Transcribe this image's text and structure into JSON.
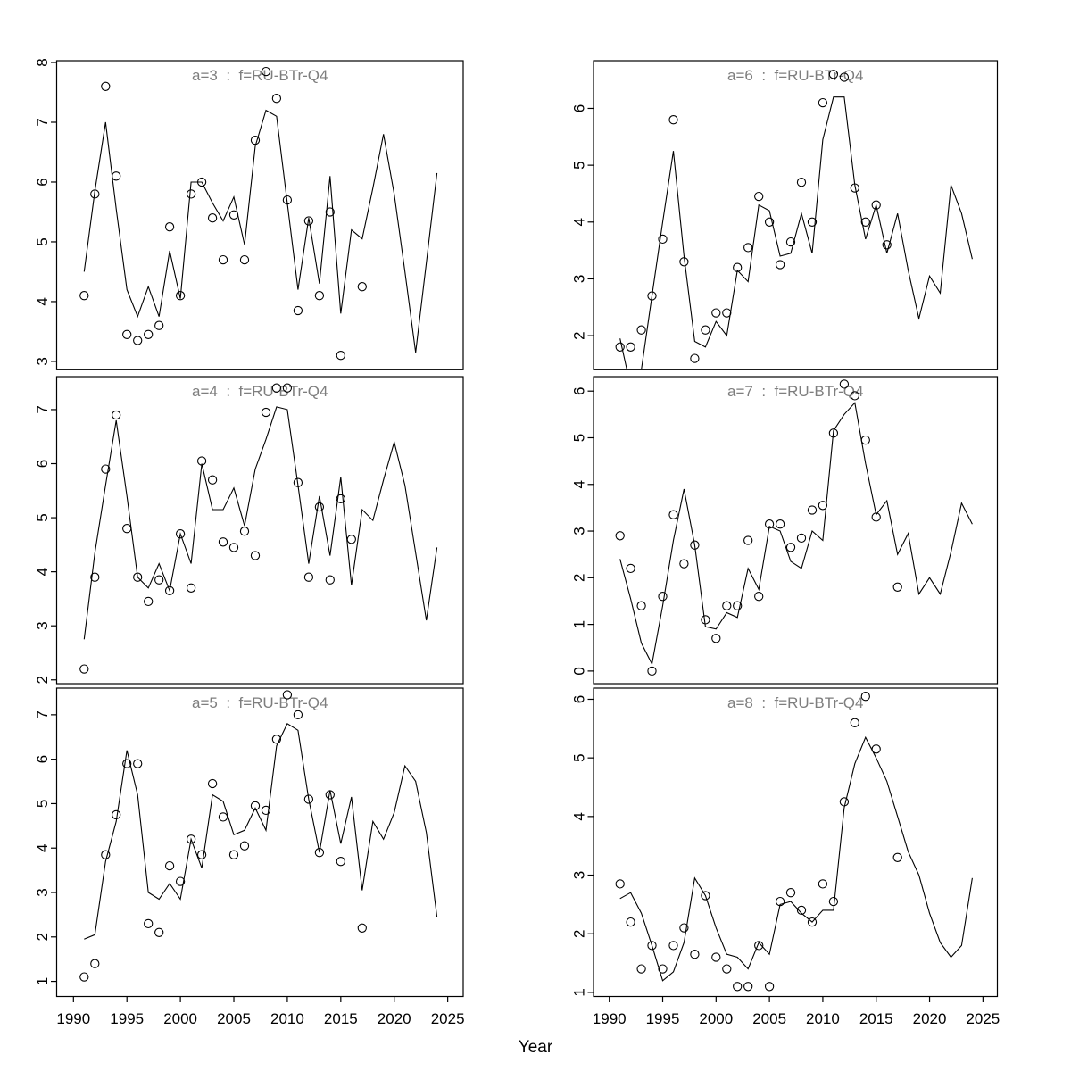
{
  "figure": {
    "background": "#ffffff",
    "xlabel": "Year",
    "x_ticks": [
      1990,
      1995,
      2000,
      2005,
      2010,
      2015,
      2020,
      2025
    ],
    "title_color": "#7e7e7e",
    "line_color": "#000000",
    "point_color": "#000000"
  },
  "chart_data": [
    {
      "type": "line",
      "title": "a=3  :  f=RU-BTr-Q4",
      "age": "a=3",
      "fleet": "f=RU-BTr-Q4",
      "grid_pos": {
        "row": 0,
        "col": 0
      },
      "xlim": [
        1988.43,
        2026.45
      ],
      "ylim": [
        2.86,
        8.03
      ],
      "yticks": [
        3,
        4,
        5,
        6,
        7,
        8
      ],
      "line": {
        "x": [
          1991,
          1992,
          1993,
          1994,
          1995,
          1996,
          1997,
          1998,
          1999,
          2000,
          2001,
          2002,
          2003,
          2004,
          2005,
          2006,
          2007,
          2008,
          2009,
          2010,
          2011,
          2012,
          2013,
          2014,
          2015,
          2016,
          2017,
          2018,
          2019,
          2020,
          2021,
          2022,
          2023,
          2024
        ],
        "y": [
          4.5,
          5.85,
          7.0,
          5.55,
          4.2,
          3.75,
          4.25,
          3.75,
          4.85,
          4.05,
          6.0,
          6.0,
          5.65,
          5.35,
          5.75,
          4.95,
          6.6,
          7.2,
          7.1,
          5.65,
          4.2,
          5.4,
          4.3,
          6.1,
          3.8,
          5.2,
          5.05,
          5.9,
          6.8,
          5.8,
          4.5,
          3.15,
          4.65,
          6.15
        ]
      },
      "points": {
        "x": [
          1991,
          1992,
          1993,
          1994,
          1995,
          1996,
          1997,
          1998,
          1999,
          2000,
          2001,
          2002,
          2003,
          2004,
          2005,
          2006,
          2007,
          2008,
          2009,
          2010,
          2011,
          2012,
          2013,
          2014,
          2015,
          2017
        ],
        "y": [
          4.1,
          5.8,
          7.6,
          6.1,
          3.45,
          3.35,
          3.45,
          3.6,
          5.25,
          4.1,
          5.8,
          6.0,
          5.4,
          4.7,
          5.45,
          4.7,
          6.7,
          7.85,
          7.4,
          5.7,
          3.85,
          5.35,
          4.1,
          5.5,
          3.1,
          4.25
        ]
      }
    },
    {
      "type": "line",
      "title": "a=6  :  f=RU-BTr-Q4",
      "age": "a=6",
      "fleet": "f=RU-BTr-Q4",
      "grid_pos": {
        "row": 0,
        "col": 1
      },
      "xlim": [
        1988.52,
        2026.35
      ],
      "ylim": [
        1.4,
        6.84
      ],
      "yticks": [
        2,
        3,
        4,
        5,
        6
      ],
      "line": {
        "x": [
          1991,
          1992,
          1993,
          1994,
          1995,
          1996,
          1997,
          1998,
          1999,
          2000,
          2001,
          2002,
          2003,
          2004,
          2005,
          2006,
          2007,
          2008,
          2009,
          2010,
          2011,
          2012,
          2013,
          2014,
          2015,
          2016,
          2017,
          2018,
          2019,
          2020,
          2021,
          2022,
          2023,
          2024
        ],
        "y": [
          1.95,
          1.1,
          1.4,
          2.7,
          4.0,
          5.25,
          3.4,
          1.9,
          1.8,
          2.25,
          2.0,
          3.15,
          2.95,
          4.3,
          4.2,
          3.4,
          3.45,
          4.15,
          3.45,
          5.45,
          6.2,
          6.2,
          4.65,
          3.7,
          4.3,
          3.45,
          4.15,
          3.15,
          2.3,
          3.05,
          2.75,
          4.65,
          4.15,
          3.35
        ]
      },
      "points": {
        "x": [
          1991,
          1992,
          1993,
          1994,
          1995,
          1996,
          1997,
          1998,
          1999,
          2000,
          2001,
          2002,
          2003,
          2004,
          2005,
          2006,
          2007,
          2008,
          2009,
          2010,
          2011,
          2012,
          2013,
          2014,
          2015,
          2016
        ],
        "y": [
          1.8,
          1.8,
          2.1,
          2.7,
          3.7,
          5.8,
          3.3,
          1.6,
          2.1,
          2.4,
          2.4,
          3.2,
          3.55,
          4.45,
          4.0,
          3.25,
          3.65,
          4.7,
          4.0,
          6.1,
          6.6,
          6.55,
          4.6,
          4.0,
          4.3,
          3.6
        ]
      }
    },
    {
      "type": "line",
      "title": "a=4  :  f=RU-BTr-Q4",
      "age": "a=4",
      "fleet": "f=RU-BTr-Q4",
      "grid_pos": {
        "row": 1,
        "col": 0
      },
      "xlim": [
        1988.43,
        2026.45
      ],
      "ylim": [
        1.93,
        7.61
      ],
      "yticks": [
        2,
        3,
        4,
        5,
        6,
        7
      ],
      "line": {
        "x": [
          1991,
          1992,
          1993,
          1994,
          1995,
          1996,
          1997,
          1998,
          1999,
          2000,
          2001,
          2002,
          2003,
          2004,
          2005,
          2006,
          2007,
          2008,
          2009,
          2010,
          2011,
          2012,
          2013,
          2014,
          2015,
          2016,
          2017,
          2018,
          2019,
          2020,
          2021,
          2022,
          2023,
          2024
        ],
        "y": [
          2.75,
          4.35,
          5.6,
          6.8,
          5.4,
          3.9,
          3.7,
          4.15,
          3.65,
          4.7,
          4.15,
          6.0,
          5.15,
          5.15,
          5.55,
          4.85,
          5.9,
          6.45,
          7.05,
          7.0,
          5.6,
          4.15,
          5.4,
          4.3,
          5.75,
          3.75,
          5.15,
          4.95,
          5.7,
          6.4,
          5.6,
          4.35,
          3.1,
          4.45
        ]
      },
      "points": {
        "x": [
          1991,
          1992,
          1993,
          1994,
          1995,
          1996,
          1997,
          1998,
          1999,
          2000,
          2001,
          2002,
          2003,
          2004,
          2005,
          2006,
          2007,
          2008,
          2009,
          2010,
          2011,
          2012,
          2013,
          2014,
          2015,
          2016
        ],
        "y": [
          2.2,
          3.9,
          5.9,
          6.9,
          4.8,
          3.9,
          3.45,
          3.85,
          3.65,
          4.7,
          3.7,
          6.05,
          5.7,
          4.55,
          4.45,
          4.75,
          4.3,
          6.95,
          7.4,
          7.4,
          5.65,
          3.9,
          5.2,
          3.85,
          5.35,
          4.6
        ]
      }
    },
    {
      "type": "line",
      "title": "a=7  :  f=RU-BTr-Q4",
      "age": "a=7",
      "fleet": "f=RU-BTr-Q4",
      "grid_pos": {
        "row": 1,
        "col": 1
      },
      "xlim": [
        1988.52,
        2026.35
      ],
      "ylim": [
        -0.27,
        6.31
      ],
      "yticks": [
        0,
        1,
        2,
        3,
        4,
        5,
        6
      ],
      "line": {
        "x": [
          1991,
          1992,
          1993,
          1994,
          1995,
          1996,
          1997,
          1998,
          1999,
          2000,
          2001,
          2002,
          2003,
          2004,
          2005,
          2006,
          2007,
          2008,
          2009,
          2010,
          2011,
          2012,
          2013,
          2014,
          2015,
          2016,
          2017,
          2018,
          2019,
          2020,
          2021,
          2022,
          2023,
          2024
        ],
        "y": [
          2.4,
          1.55,
          0.6,
          0.15,
          1.4,
          2.8,
          3.9,
          2.7,
          0.95,
          0.9,
          1.25,
          1.15,
          2.2,
          1.75,
          3.1,
          3.0,
          2.35,
          2.2,
          3.0,
          2.8,
          5.15,
          5.5,
          5.75,
          4.45,
          3.35,
          3.65,
          2.5,
          2.95,
          1.65,
          2.0,
          1.65,
          2.55,
          3.6,
          3.15
        ]
      },
      "points": {
        "x": [
          1991,
          1992,
          1993,
          1994,
          1995,
          1996,
          1997,
          1998,
          1999,
          2000,
          2001,
          2002,
          2003,
          2004,
          2005,
          2006,
          2007,
          2008,
          2009,
          2010,
          2011,
          2012,
          2013,
          2014,
          2015,
          2017
        ],
        "y": [
          2.9,
          2.2,
          1.4,
          0.0,
          1.6,
          3.35,
          2.3,
          2.7,
          1.1,
          0.7,
          1.4,
          1.4,
          2.8,
          1.6,
          3.15,
          3.15,
          2.65,
          2.85,
          3.45,
          3.55,
          5.1,
          6.15,
          5.9,
          4.95,
          3.3,
          1.8
        ]
      }
    },
    {
      "type": "line",
      "title": "a=5  :  f=RU-BTr-Q4",
      "age": "a=5",
      "fleet": "f=RU-BTr-Q4",
      "grid_pos": {
        "row": 2,
        "col": 0
      },
      "xlim": [
        1988.43,
        2026.45
      ],
      "ylim": [
        0.66,
        7.6
      ],
      "yticks": [
        1,
        2,
        3,
        4,
        5,
        6,
        7
      ],
      "line": {
        "x": [
          1991,
          1992,
          1993,
          1994,
          1995,
          1996,
          1997,
          1998,
          1999,
          2000,
          2001,
          2002,
          2003,
          2004,
          2005,
          2006,
          2007,
          2008,
          2009,
          2010,
          2011,
          2012,
          2013,
          2014,
          2015,
          2016,
          2017,
          2018,
          2019,
          2020,
          2021,
          2022,
          2023,
          2024
        ],
        "y": [
          1.95,
          2.05,
          3.7,
          4.6,
          6.2,
          5.2,
          3.0,
          2.85,
          3.2,
          2.85,
          4.2,
          3.55,
          5.2,
          5.05,
          4.3,
          4.4,
          4.9,
          4.4,
          6.3,
          6.8,
          6.65,
          5.1,
          3.9,
          5.3,
          4.1,
          5.15,
          3.05,
          4.6,
          4.2,
          4.8,
          5.85,
          5.5,
          4.35,
          2.45
        ]
      },
      "points": {
        "x": [
          1991,
          1992,
          1993,
          1994,
          1995,
          1996,
          1997,
          1998,
          1999,
          2000,
          2001,
          2002,
          2003,
          2004,
          2005,
          2006,
          2007,
          2008,
          2009,
          2010,
          2011,
          2012,
          2013,
          2014,
          2015,
          2017
        ],
        "y": [
          1.1,
          1.4,
          3.85,
          4.75,
          5.9,
          5.9,
          2.3,
          2.1,
          3.6,
          3.25,
          4.2,
          3.85,
          5.45,
          4.7,
          3.85,
          4.05,
          4.95,
          4.85,
          6.45,
          7.45,
          7.0,
          5.1,
          3.9,
          5.2,
          3.7,
          2.2
        ]
      }
    },
    {
      "type": "line",
      "title": "a=8  :  f=RU-BTr-Q4",
      "age": "a=8",
      "fleet": "f=RU-BTr-Q4",
      "grid_pos": {
        "row": 2,
        "col": 1
      },
      "xlim": [
        1988.52,
        2026.35
      ],
      "ylim": [
        0.93,
        6.19
      ],
      "yticks": [
        1,
        2,
        3,
        4,
        5,
        6
      ],
      "line": {
        "x": [
          1991,
          1992,
          1993,
          1994,
          1995,
          1996,
          1997,
          1998,
          1999,
          2000,
          2001,
          2002,
          2003,
          2004,
          2005,
          2006,
          2007,
          2008,
          2009,
          2010,
          2011,
          2012,
          2013,
          2014,
          2015,
          2016,
          2017,
          2018,
          2019,
          2020,
          2021,
          2022,
          2023,
          2024
        ],
        "y": [
          2.6,
          2.7,
          2.35,
          1.8,
          1.2,
          1.35,
          1.85,
          2.95,
          2.65,
          2.1,
          1.65,
          1.6,
          1.4,
          1.85,
          1.65,
          2.5,
          2.55,
          2.35,
          2.2,
          2.4,
          2.4,
          4.15,
          4.9,
          5.35,
          5.0,
          4.6,
          4.0,
          3.4,
          3.0,
          2.35,
          1.85,
          1.6,
          1.8,
          2.95
        ]
      },
      "points": {
        "x": [
          1991,
          1992,
          1993,
          1994,
          1995,
          1996,
          1997,
          1998,
          1999,
          2000,
          2001,
          2002,
          2003,
          2004,
          2005,
          2006,
          2007,
          2008,
          2009,
          2010,
          2011,
          2012,
          2013,
          2014,
          2015,
          2017
        ],
        "y": [
          2.85,
          2.2,
          1.4,
          1.8,
          1.4,
          1.8,
          2.1,
          1.65,
          2.65,
          1.6,
          1.4,
          1.1,
          1.1,
          1.8,
          1.1,
          2.55,
          2.7,
          2.4,
          2.2,
          2.85,
          2.55,
          4.25,
          5.6,
          6.05,
          5.15,
          3.3
        ]
      }
    }
  ]
}
